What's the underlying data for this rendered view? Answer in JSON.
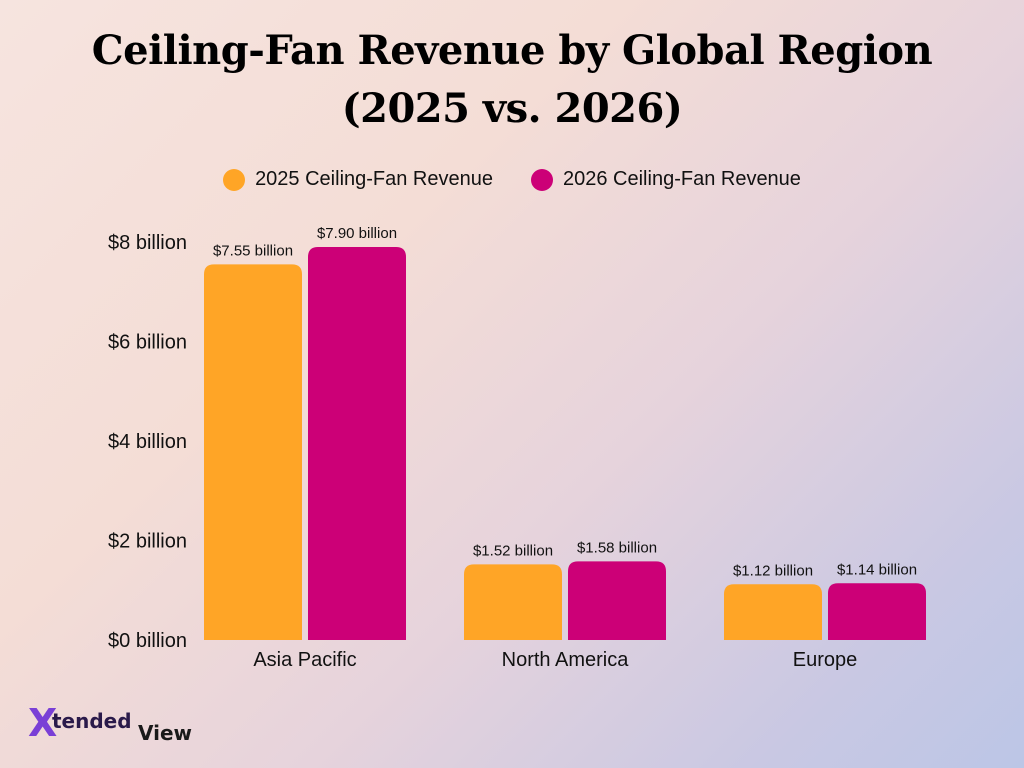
{
  "title_line1": "Ceiling-Fan Revenue by Global Region",
  "title_line2": "(2025 vs. 2026)",
  "chart_data": {
    "type": "bar",
    "categories": [
      "Asia Pacific",
      "North America",
      "Europe"
    ],
    "series": [
      {
        "name": "2025 Ceiling-Fan Revenue",
        "values": [
          7.55,
          1.52,
          1.12
        ],
        "labels": [
          "$7.55 billion",
          "$1.52 billion",
          "$1.12 billion"
        ],
        "color": "#FFA526"
      },
      {
        "name": "2026 Ceiling-Fan Revenue",
        "values": [
          7.9,
          1.58,
          1.14
        ],
        "labels": [
          "$7.90 billion",
          "$1.58 billion",
          "$1.14 billion"
        ],
        "color": "#CC0077"
      }
    ],
    "y_ticks": [
      0,
      2,
      4,
      6,
      8
    ],
    "y_tick_labels": [
      "$0 billion",
      "$2 billion",
      "$4 billion",
      "$6 billion",
      "$8 billion"
    ],
    "ylim": [
      0,
      8
    ],
    "grid": false,
    "legend_position": "top-center"
  },
  "logo": {
    "prefix": "X",
    "word1": "tended",
    "word2": "View"
  }
}
